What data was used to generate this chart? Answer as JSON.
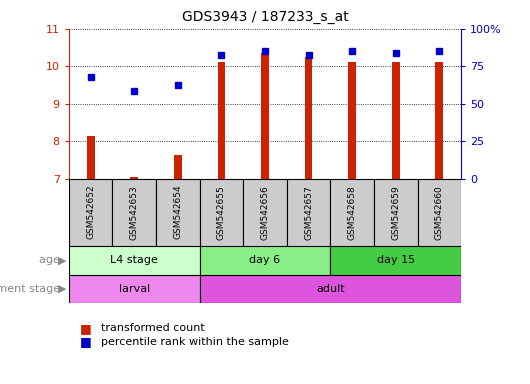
{
  "title": "GDS3943 / 187233_s_at",
  "samples": [
    "GSM542652",
    "GSM542653",
    "GSM542654",
    "GSM542655",
    "GSM542656",
    "GSM542657",
    "GSM542658",
    "GSM542659",
    "GSM542660"
  ],
  "transformed_count": [
    8.15,
    7.05,
    7.62,
    10.1,
    10.35,
    10.25,
    10.1,
    10.1,
    10.1
  ],
  "percentile_rank": [
    9.7,
    9.35,
    9.5,
    10.3,
    10.4,
    10.3,
    10.4,
    10.35,
    10.4
  ],
  "ylim_left": [
    7,
    11
  ],
  "ylim_right": [
    0,
    100
  ],
  "yticks_left": [
    7,
    8,
    9,
    10,
    11
  ],
  "yticks_right": [
    0,
    25,
    50,
    75,
    100
  ],
  "ytick_right_labels": [
    "0",
    "25",
    "50",
    "75",
    "100%"
  ],
  "bar_color": "#cc2200",
  "dot_color": "#0000cc",
  "bar_bottom": 7.0,
  "age_groups": [
    {
      "label": "L4 stage",
      "start": 0,
      "end": 3,
      "color": "#ccffcc"
    },
    {
      "label": "day 6",
      "start": 3,
      "end": 6,
      "color": "#88ee88"
    },
    {
      "label": "day 15",
      "start": 6,
      "end": 9,
      "color": "#44cc44"
    }
  ],
  "dev_groups": [
    {
      "label": "larval",
      "start": 0,
      "end": 3,
      "color": "#ee88ee"
    },
    {
      "label": "adult",
      "start": 3,
      "end": 9,
      "color": "#dd55dd"
    }
  ],
  "age_label": "age",
  "dev_label": "development stage",
  "legend_bar_label": "transformed count",
  "legend_dot_label": "percentile rank within the sample",
  "bg_color": "#ffffff",
  "tick_label_color_left": "#cc2200",
  "tick_label_color_right": "#0000cc",
  "sample_box_color": "#cccccc",
  "left_label_color": "#888888"
}
